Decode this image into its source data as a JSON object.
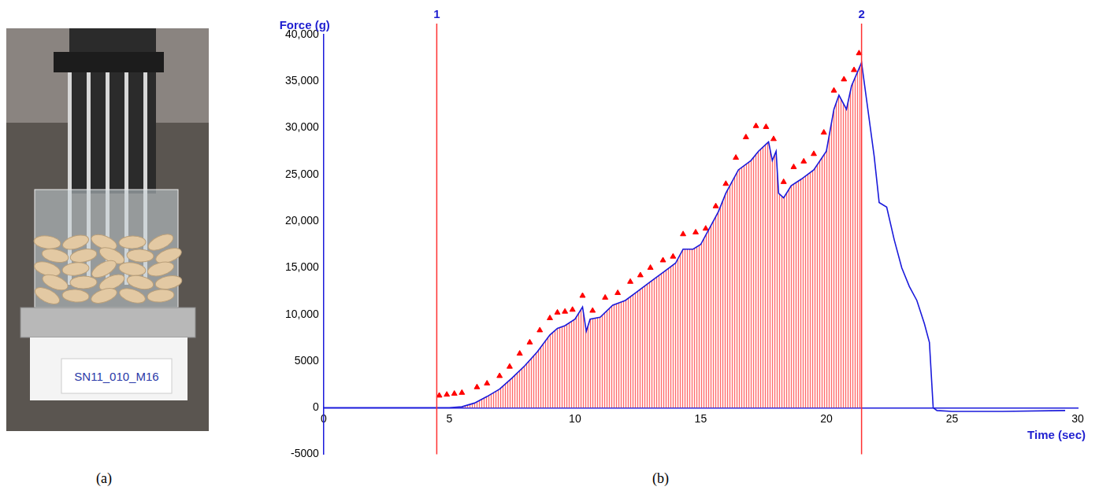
{
  "panel_labels": [
    "(a)",
    "(b)"
  ],
  "photo": {
    "card_text": "SN11_010_M16"
  },
  "chart_data": {
    "type": "line",
    "y_label": "Force (g)",
    "x_label": "Time (sec)",
    "xlim": [
      0,
      30
    ],
    "xticks": [
      0,
      5,
      10,
      15,
      20,
      25,
      30
    ],
    "ylim": [
      -5000,
      40000
    ],
    "yticks": [
      -5000,
      0,
      5000,
      {
        "value": 10000,
        "label": "10,000"
      },
      {
        "value": 15000,
        "label": "15,000"
      },
      {
        "value": 20000,
        "label": "20,000"
      },
      {
        "value": 25000,
        "label": "25,000"
      },
      {
        "value": 30000,
        "label": "30,000"
      },
      {
        "value": 35000,
        "label": "35,000"
      },
      {
        "value": 40000,
        "label": "40,000"
      }
    ],
    "grid": false,
    "annotations": [
      {
        "x": 4.5,
        "label": "1"
      },
      {
        "x": 21.4,
        "label": "2"
      }
    ],
    "series": [
      {
        "color": "#1a1adb",
        "line_style": "solid",
        "x": [
          0,
          4.5,
          5,
          5.5,
          6,
          6.5,
          7,
          7.5,
          8,
          8.5,
          9,
          9.3,
          9.6,
          10,
          10.3,
          10.45,
          10.6,
          11,
          11.5,
          12,
          12.5,
          13,
          13.5,
          14,
          14.3,
          14.7,
          15,
          15.3,
          15.7,
          16,
          16.5,
          17,
          17.3,
          17.7,
          17.85,
          18,
          18.1,
          18.3,
          18.6,
          19,
          19.5,
          20,
          20.3,
          20.5,
          20.8,
          21,
          21.4,
          21.6,
          21.9,
          22.1,
          22.4,
          22.7,
          23,
          23.3,
          23.6,
          23.9,
          24.1,
          24.25,
          24.4,
          25,
          27,
          29.5
        ],
        "values": [
          0,
          0,
          0,
          100,
          500,
          1200,
          2000,
          3200,
          4500,
          6000,
          7800,
          8500,
          8800,
          9500,
          10800,
          8200,
          9500,
          9700,
          11000,
          11500,
          12500,
          13500,
          14500,
          15500,
          17000,
          17000,
          17500,
          19000,
          21000,
          23000,
          25500,
          26500,
          27500,
          28500,
          26500,
          27500,
          23000,
          22500,
          23800,
          24500,
          25500,
          27500,
          32000,
          33500,
          32000,
          34500,
          37000,
          33000,
          27000,
          22000,
          21500,
          18000,
          15000,
          13000,
          11500,
          9000,
          7000,
          0,
          -300,
          -400,
          -400,
          -300
        ]
      },
      {
        "color": "#ff0000",
        "marker": "triangle",
        "x": [
          4.6,
          4.9,
          5.2,
          5.5,
          6.1,
          6.5,
          7,
          7.4,
          7.8,
          8.2,
          8.6,
          9,
          9.3,
          9.6,
          9.9,
          10.3,
          10.7,
          11.2,
          11.7,
          12.2,
          12.6,
          13,
          13.5,
          13.9,
          14.3,
          14.8,
          15.2,
          15.6,
          16,
          16.4,
          16.8,
          17.2,
          17.6,
          17.9,
          18.3,
          18.7,
          19.1,
          19.5,
          19.9,
          20.3,
          20.7,
          21.1,
          21.3
        ],
        "values": [
          1300,
          1400,
          1500,
          1600,
          2200,
          2600,
          3400,
          4400,
          5800,
          7000,
          8300,
          9600,
          10200,
          10300,
          10500,
          12000,
          10400,
          11800,
          12300,
          13500,
          14200,
          15000,
          15800,
          16200,
          18600,
          18800,
          19200,
          21600,
          24000,
          26800,
          29000,
          30200,
          30100,
          28800,
          24200,
          25800,
          26400,
          27200,
          29500,
          34000,
          35200,
          36200,
          38000
        ]
      }
    ]
  }
}
